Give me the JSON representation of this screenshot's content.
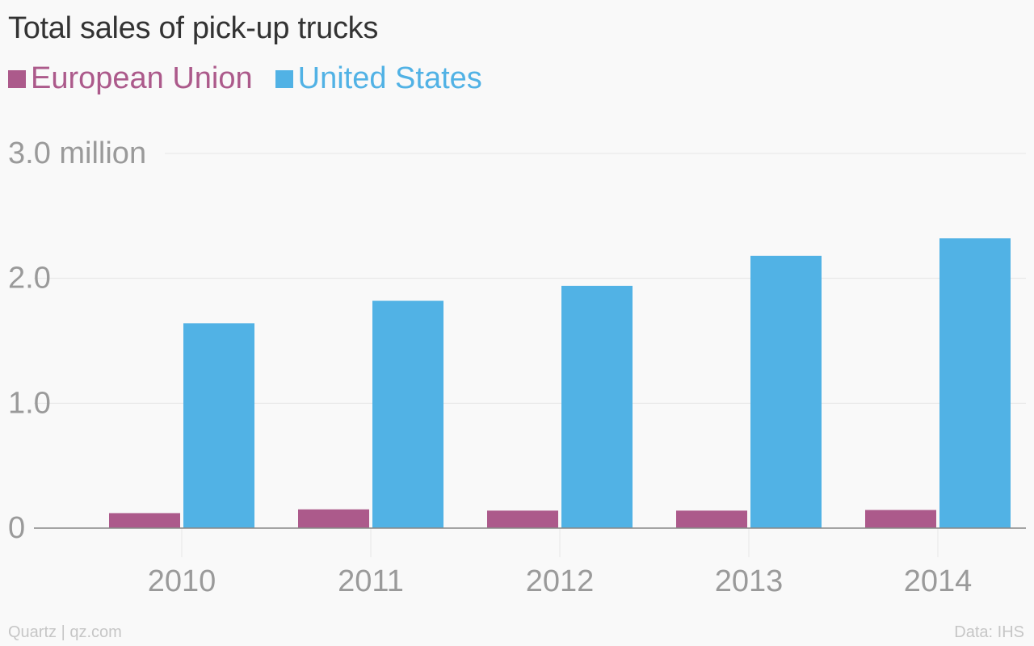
{
  "chart_data": {
    "type": "bar",
    "title": "Total sales of pick-up trucks",
    "categories": [
      "2010",
      "2011",
      "2012",
      "2013",
      "2014"
    ],
    "series": [
      {
        "name": "European Union",
        "color": "#ac5a8b",
        "values": [
          0.12,
          0.15,
          0.14,
          0.14,
          0.145
        ]
      },
      {
        "name": "United States",
        "color": "#51b2e5",
        "values": [
          1.64,
          1.82,
          1.94,
          2.18,
          2.32
        ]
      }
    ],
    "y_ticks": [
      {
        "value": 0,
        "label": "0"
      },
      {
        "value": 1,
        "label": "1.0"
      },
      {
        "value": 2,
        "label": "2.0"
      },
      {
        "value": 3,
        "label": "3.0 million"
      }
    ],
    "ylim": [
      0,
      3
    ],
    "xlabel": "",
    "ylabel": "",
    "grid": true,
    "legend": "top-left"
  },
  "footer": {
    "source_left": "Quartz | qz.com",
    "source_right": "Data: IHS"
  }
}
